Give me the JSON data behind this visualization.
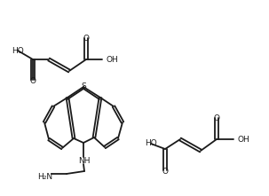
{
  "bg": "#ffffff",
  "lc": "#1a1a1a",
  "lw": 1.3,
  "fw": 3.03,
  "fh": 2.21,
  "dpi": 100
}
